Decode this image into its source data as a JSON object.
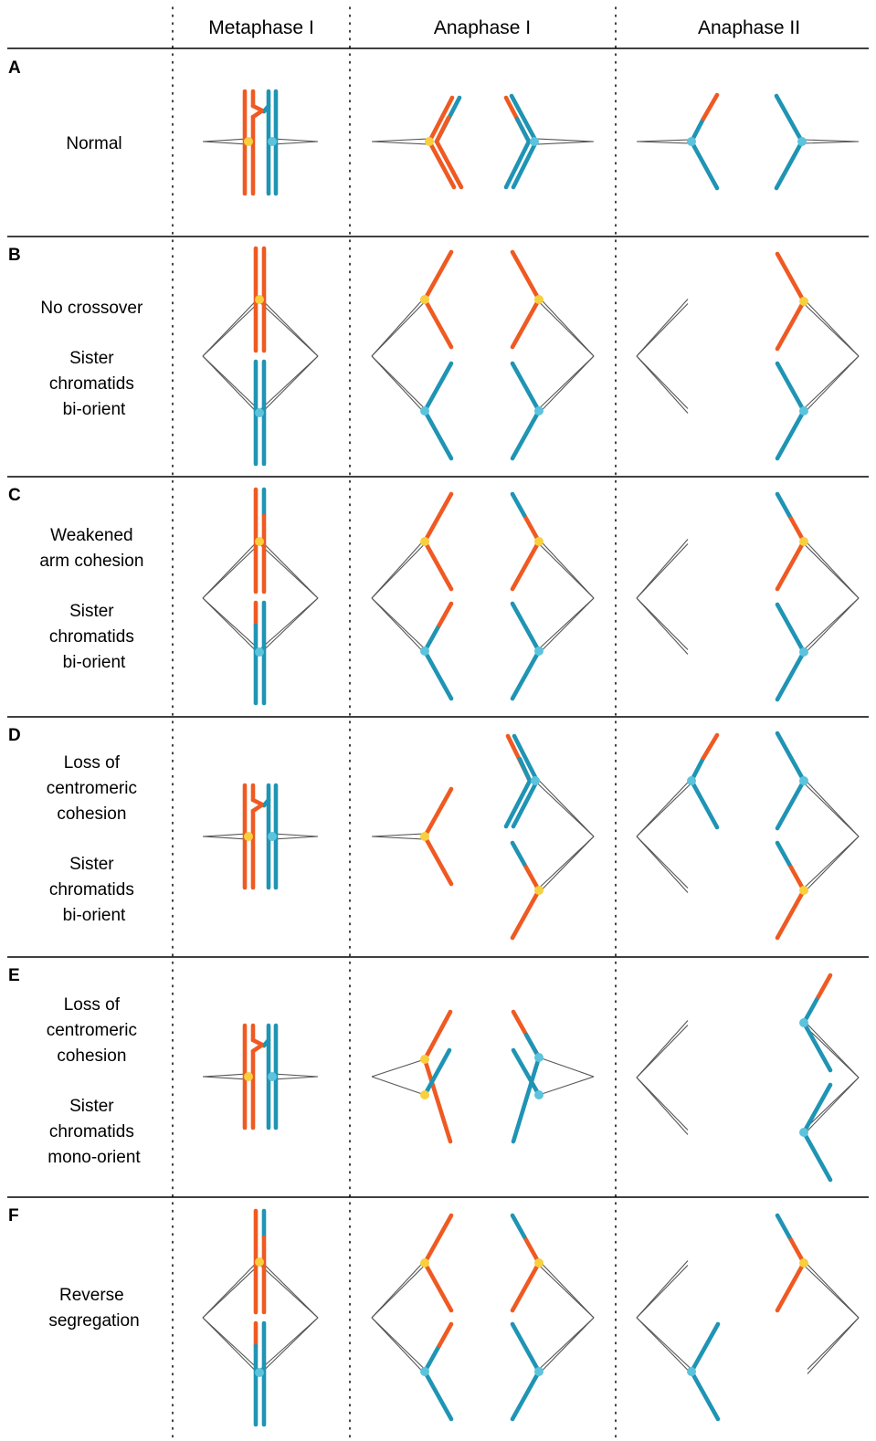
{
  "columns": [
    "Metaphase I",
    "Anaphase I",
    "Anaphase II"
  ],
  "colors": {
    "maternal": "#ef5a22",
    "paternal": "#1f94b4",
    "centromere_maternal": "#f8cf3e",
    "centromere_paternal": "#5cc3dd",
    "spindle": "#555555",
    "divider": "#000000"
  },
  "rows": [
    {
      "letter": "A",
      "label_lines": [
        "Normal"
      ]
    },
    {
      "letter": "B",
      "label_lines": [
        "No crossover",
        "",
        "Sister",
        "chromatids",
        "bi-orient"
      ]
    },
    {
      "letter": "C",
      "label_lines": [
        "Weakened",
        "arm cohesion",
        "",
        "Sister",
        "chromatids",
        "bi-orient"
      ]
    },
    {
      "letter": "D",
      "label_lines": [
        "Loss of",
        "centromeric",
        "cohesion",
        "",
        "Sister",
        "chromatids",
        "bi-orient"
      ]
    },
    {
      "letter": "E",
      "label_lines": [
        "Loss of",
        "centromeric",
        "cohesion",
        "",
        "Sister",
        "chromatids",
        "mono-orient"
      ]
    },
    {
      "letter": "F",
      "label_lines": [
        "Reverse",
        "segregation"
      ]
    }
  ]
}
